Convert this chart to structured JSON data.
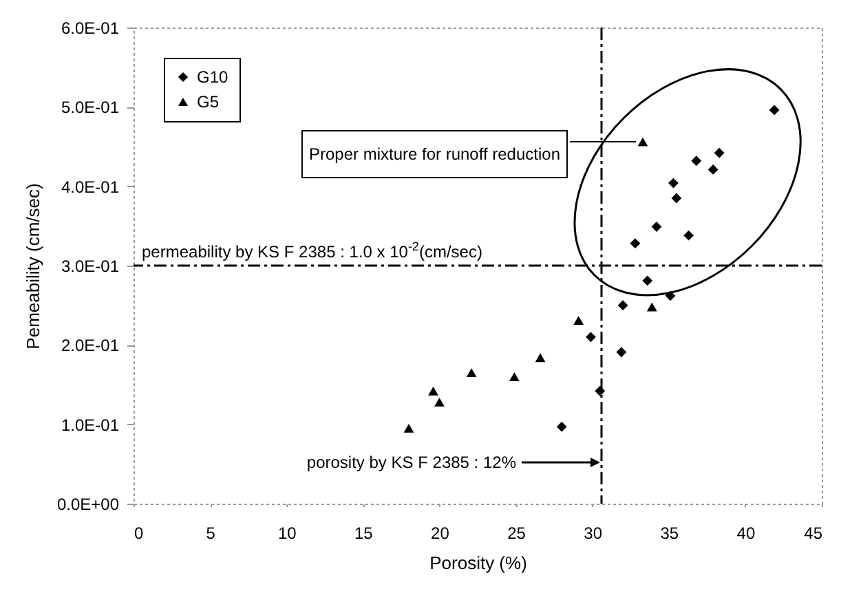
{
  "chart_data": {
    "type": "scatter",
    "xlabel": "Porosity (%)",
    "ylabel": "Pemeability (cm/sec)",
    "xlim": [
      0,
      45
    ],
    "xticks": [
      0,
      5,
      10,
      15,
      20,
      25,
      30,
      35,
      40,
      45
    ],
    "ylim": [
      0,
      0.6
    ],
    "yticks": [
      {
        "value": 0,
        "label": "0.0E+00"
      },
      {
        "value": 0.1,
        "label": "1.0E-01"
      },
      {
        "value": 0.2,
        "label": "2.0E-01"
      },
      {
        "value": 0.3,
        "label": "3.0E-01"
      },
      {
        "value": 0.4,
        "label": "4.0E-01"
      },
      {
        "value": 0.5,
        "label": "5.0E-01"
      },
      {
        "value": 0.6,
        "label": "6.0E-01"
      }
    ],
    "grid": false,
    "legend": "top left",
    "series": [
      {
        "name": "G10",
        "color": "#000000",
        "marker": "diamond",
        "x": [
          41.9,
          38.3,
          36.8,
          37.9,
          35.3,
          35.5,
          34.2,
          36.3,
          32.8,
          33.6,
          32.0,
          35.1,
          29.9,
          31.9,
          30.5,
          28.0
        ],
        "values": [
          0.496,
          0.442,
          0.432,
          0.421,
          0.404,
          0.385,
          0.349,
          0.338,
          0.328,
          0.281,
          0.25,
          0.262,
          0.21,
          0.191,
          0.142,
          0.097
        ]
      },
      {
        "name": "G5",
        "color": "#000000",
        "marker": "triangle",
        "x": [
          33.3,
          33.9,
          29.1,
          26.6,
          24.9,
          22.1,
          19.6,
          20.0,
          18.0
        ],
        "values": [
          0.456,
          0.248,
          0.231,
          0.184,
          0.16,
          0.165,
          0.142,
          0.128,
          0.095
        ]
      }
    ],
    "ref_lines": [
      {
        "axis": "y",
        "value": 0.3,
        "line_style": "dashed"
      },
      {
        "axis": "x",
        "value": 30.6,
        "line_style": "dashed"
      }
    ],
    "annotations": [
      {
        "text": "Proper mixture for runoff reduction",
        "x": 33.3,
        "y": 0.456
      },
      {
        "text": "permeability by KS F 2385 : 1.0 x 10$^{-2}$(cm/sec)",
        "y": 0.3
      },
      "porosity by KS F 2385 : 12%"
    ]
  }
}
